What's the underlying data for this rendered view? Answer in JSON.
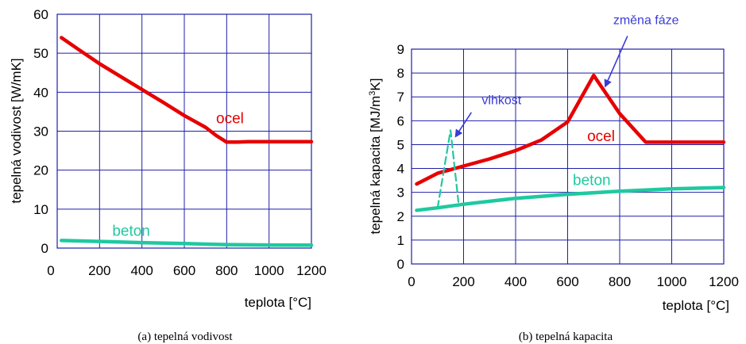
{
  "chart_data": [
    {
      "type": "line",
      "caption": "(a) tepelná vodivost",
      "xlabel": "teplota [°C]",
      "ylabel": "tepelná vodivost [W/mK]",
      "xlim": [
        0,
        1200
      ],
      "ylim": [
        0,
        60
      ],
      "xticks": [
        "0",
        "200",
        "400",
        "600",
        "800",
        "1000",
        "1200"
      ],
      "yticks": [
        "0",
        "10",
        "20",
        "30",
        "40",
        "50",
        "60"
      ],
      "grid": true,
      "series": [
        {
          "name": "ocel",
          "color": "#e60000",
          "x": [
            20,
            100,
            200,
            300,
            400,
            500,
            600,
            700,
            750,
            800,
            850,
            900,
            1000,
            1100,
            1200
          ],
          "y": [
            54,
            51,
            47.3,
            44,
            40.7,
            37.4,
            34,
            31,
            28.9,
            27.2,
            27.2,
            27.3,
            27.3,
            27.3,
            27.3
          ]
        },
        {
          "name": "beton",
          "color": "#1fc9a0",
          "x": [
            20,
            200,
            400,
            600,
            800,
            1000,
            1200
          ],
          "y": [
            1.95,
            1.7,
            1.4,
            1.15,
            0.9,
            0.8,
            0.75
          ]
        }
      ],
      "labels": [
        {
          "text": "ocel",
          "x": 750,
          "y": 32,
          "color": "#e60000"
        },
        {
          "text": "beton",
          "x": 260,
          "y": 3.2,
          "color": "#1fc9a0"
        }
      ]
    },
    {
      "type": "line",
      "caption": "(b) tepelná kapacita",
      "xlabel": "teplota [°C]",
      "ylabel_parts": [
        "tepelná kapacita [MJ/m",
        "3",
        "K]"
      ],
      "xlim": [
        0,
        1200
      ],
      "ylim": [
        0,
        9
      ],
      "xticks": [
        "0",
        "200",
        "400",
        "600",
        "800",
        "1000",
        "1200"
      ],
      "yticks": [
        "0",
        "1",
        "2",
        "3",
        "4",
        "5",
        "6",
        "7",
        "8",
        "9"
      ],
      "grid": true,
      "series": [
        {
          "name": "ocel",
          "color": "#e60000",
          "x": [
            20,
            100,
            200,
            300,
            400,
            500,
            600,
            700,
            800,
            900,
            1000,
            1100,
            1200
          ],
          "y": [
            3.35,
            3.8,
            4.1,
            4.4,
            4.75,
            5.2,
            5.95,
            7.9,
            6.3,
            5.1,
            5.1,
            5.1,
            5.1
          ]
        },
        {
          "name": "beton",
          "color": "#1fc9a0",
          "x": [
            20,
            100,
            200,
            400,
            600,
            800,
            1000,
            1200
          ],
          "y": [
            2.25,
            2.35,
            2.5,
            2.75,
            2.92,
            3.05,
            3.15,
            3.2
          ]
        },
        {
          "name": "vlhkost",
          "color": "#1fc9a0",
          "dashed": true,
          "x": [
            100,
            150,
            180
          ],
          "y": [
            2.35,
            5.6,
            2.6
          ]
        }
      ],
      "labels": [
        {
          "text": "ocel",
          "x": 675,
          "y": 5.15,
          "color": "#e60000"
        },
        {
          "text": "beton",
          "x": 620,
          "y": 3.3,
          "color": "#1fc9a0"
        }
      ],
      "annotations": [
        {
          "text": "vlhkost",
          "text_x": 270,
          "text_y": 6.7,
          "arrow_from": [
            230,
            6.35
          ],
          "arrow_to": [
            170,
            5.35
          ]
        },
        {
          "text": "změna fáze",
          "text_x": 775,
          "text_y": 10.05,
          "arrow_from": [
            830,
            9.55
          ],
          "arrow_to": [
            745,
            7.45
          ]
        }
      ]
    }
  ]
}
